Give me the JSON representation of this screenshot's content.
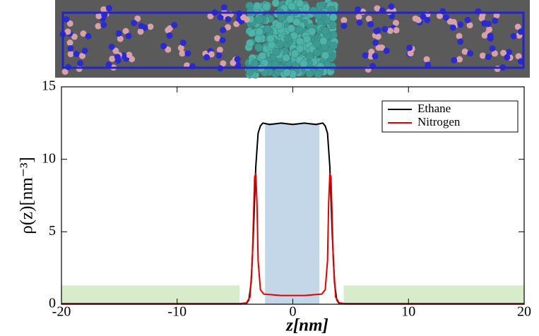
{
  "chart_data": {
    "type": "line",
    "xlabel": "z[nm]",
    "ylabel": "ρ(z)[nm⁻³]",
    "xlim": [
      -20,
      20
    ],
    "ylim": [
      0,
      15
    ],
    "xticks": [
      -20,
      -10,
      0,
      10,
      20
    ],
    "yticks": [
      0,
      5,
      10,
      15
    ],
    "legend": "upper right",
    "regions": [
      {
        "x": [
          -20,
          -4.6
        ],
        "y": [
          0,
          1.3
        ],
        "color": "#d6eccb"
      },
      {
        "x": [
          -2.4,
          2.3
        ],
        "y": [
          0,
          12.5
        ],
        "color": "#c3d7e8"
      },
      {
        "x": [
          4.4,
          20
        ],
        "y": [
          0,
          1.3
        ],
        "color": "#d6eccb"
      }
    ],
    "series": [
      {
        "name": "Ethane",
        "color": "#000000",
        "x": [
          -20,
          -4.5,
          -4.0,
          -3.8,
          -3.6,
          -3.4,
          -3.2,
          -3.0,
          -2.8,
          -2.6,
          -2.0,
          -1,
          0,
          1,
          2.0,
          2.6,
          2.8,
          3.0,
          3.2,
          3.4,
          3.6,
          3.8,
          4.0,
          4.5,
          20
        ],
        "values": [
          0.02,
          0.02,
          0.05,
          0.3,
          1.5,
          5,
          9.5,
          11.8,
          12.3,
          12.5,
          12.4,
          12.5,
          12.4,
          12.5,
          12.4,
          12.5,
          12.3,
          11.8,
          9.5,
          5,
          1.5,
          0.3,
          0.05,
          0.02,
          0.02
        ]
      },
      {
        "name": "Nitrogen",
        "color": "#e00000",
        "x": [
          -20,
          -4.5,
          -4.0,
          -3.7,
          -3.5,
          -3.4,
          -3.3,
          -3.2,
          -3.1,
          -3.0,
          -2.8,
          -2.5,
          -1,
          0,
          1,
          2.5,
          2.8,
          3.0,
          3.1,
          3.2,
          3.3,
          3.4,
          3.5,
          3.7,
          4.0,
          4.5,
          20
        ],
        "values": [
          0.05,
          0.05,
          0.1,
          0.5,
          3,
          6,
          8.8,
          9,
          7,
          3,
          1,
          0.7,
          0.6,
          0.6,
          0.6,
          0.7,
          1,
          3,
          7,
          9,
          8.8,
          6,
          3,
          0.5,
          0.1,
          0.05,
          0.05
        ]
      }
    ]
  }
}
